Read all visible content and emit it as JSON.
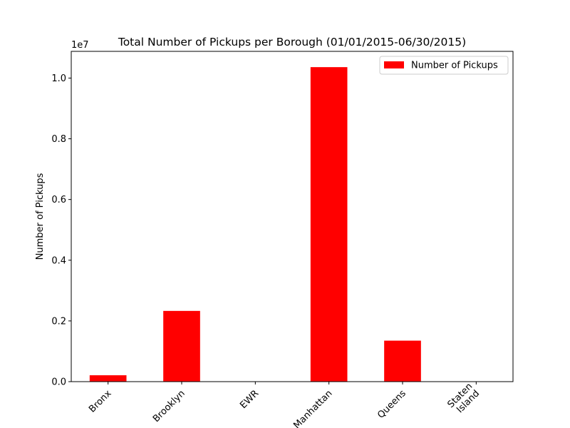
{
  "chart_data": {
    "type": "bar",
    "title": "Total Number of Pickups per Borough (01/01/2015-06/30/2015)",
    "xlabel": "",
    "ylabel": "Number of Pickups",
    "offset_label": "1e7",
    "categories": [
      "Bronx",
      "Brooklyn",
      "EWR",
      "Manhattan",
      "Queens",
      "Staten\nIsland"
    ],
    "series": [
      {
        "name": "Number of Pickups",
        "color": "#ff0000",
        "values": [
          210000,
          2330000,
          0,
          10360000,
          1350000,
          0
        ]
      }
    ],
    "ylim": [
      0,
      10880000
    ],
    "yticks": [
      0,
      2000000,
      4000000,
      6000000,
      8000000,
      10000000
    ],
    "ytick_labels": [
      "0.0",
      "0.2",
      "0.4",
      "0.6",
      "0.8",
      "1.0"
    ],
    "grid": false,
    "legend_position": "upper right"
  }
}
